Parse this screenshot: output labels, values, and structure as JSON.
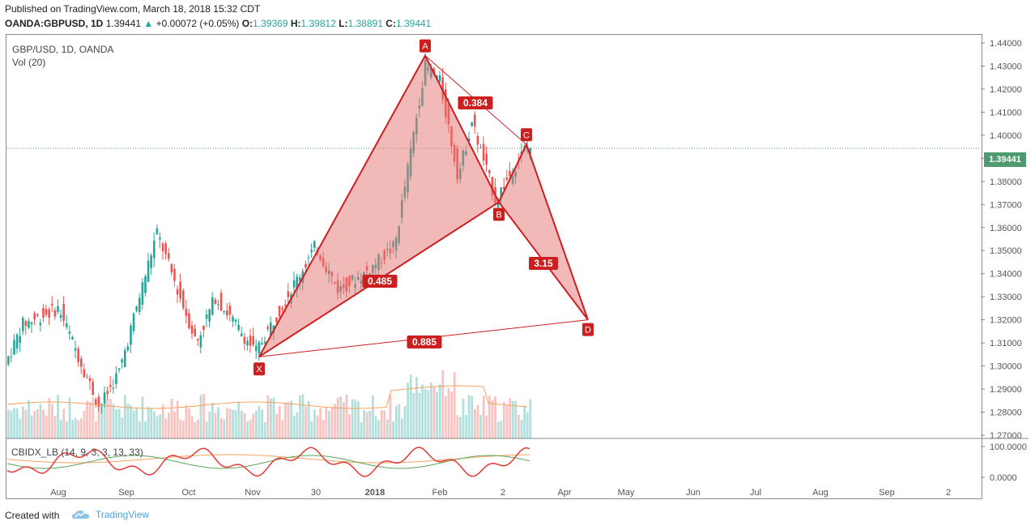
{
  "header": {
    "published": "Published on TradingView.com, March 18, 2018 15:32 CDT",
    "symbol": "OANDA:GBPUSD, 1D",
    "last": "1.39441",
    "change": "+0.00072 (+0.05%)",
    "open_label": "O:",
    "open": "1.39369",
    "high_label": "H:",
    "high": "1.39812",
    "low_label": "L:",
    "low": "1.38891",
    "close_label": "C:",
    "close": "1.39441"
  },
  "legend": {
    "title": "GBP/USD, 1D, OANDA",
    "vol": "Vol (20)"
  },
  "sub_legend": "CBIDX_LB (14, 9, 3, 3, 13, 33)",
  "footer": {
    "created": "Created with",
    "brand": "TradingView"
  },
  "colors": {
    "up": "#26a69a",
    "down": "#ef5350",
    "pattern": "#cc1f1f",
    "pattern_fill": "#e57373"
  },
  "chart_data": {
    "type": "candlestick",
    "title": "GBP/USD, 1D, OANDA",
    "current_price": "1.39441",
    "ylim": [
      1.265,
      1.445
    ],
    "y_ticks": [
      "1.44000",
      "1.43000",
      "1.42000",
      "1.41000",
      "1.40000",
      "1.39000",
      "1.38000",
      "1.37000",
      "1.36000",
      "1.35000",
      "1.34000",
      "1.33000",
      "1.32000",
      "1.31000",
      "1.30000",
      "1.29000",
      "1.28000",
      "1.27000"
    ],
    "x_ticks": [
      "Aug",
      "Sep",
      "Oct",
      "Nov",
      "30",
      "2018",
      "Feb",
      "2",
      "Apr",
      "May",
      "Jun",
      "Jul",
      "Aug",
      "Sep",
      "2"
    ],
    "pattern": {
      "name": "Harmonic XABCD",
      "points": [
        {
          "label": "X",
          "price": 1.304
        },
        {
          "label": "A",
          "price": 1.4345
        },
        {
          "label": "B",
          "price": 1.371
        },
        {
          "label": "C",
          "price": 1.396
        },
        {
          "label": "D",
          "price": 1.32
        }
      ],
      "ratios": {
        "XB": "0.485",
        "AC": "0.384",
        "BD": "3.15",
        "XD": "0.885"
      }
    },
    "oscillator": {
      "name": "CBIDX_LB",
      "y_ticks": [
        "100.0000",
        "0.0000"
      ]
    }
  }
}
